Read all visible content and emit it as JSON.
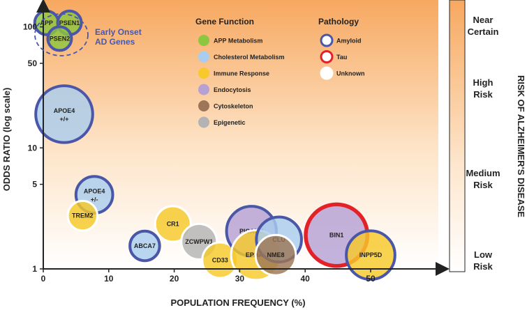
{
  "chart_data": {
    "type": "scatter",
    "xlabel": "POPULATION FREQUENCY (%)",
    "ylabel": "ODDS RATIO (log scale)",
    "y_scale": "log",
    "xlim": [
      0,
      58
    ],
    "ylim": [
      1,
      150
    ],
    "x_ticks": [
      0,
      10,
      20,
      30,
      40,
      50
    ],
    "y_ticks": [
      {
        "value": 1,
        "label": "1"
      },
      {
        "value": 5,
        "label": "5"
      },
      {
        "value": 10,
        "label": "10"
      },
      {
        "value": 50,
        "label": "50"
      },
      {
        "value": 100,
        "label": "100"
      }
    ],
    "colors": {
      "APP Metabolism": "#8dc63f",
      "Cholesterol Metabolism": "#a9cdee",
      "Immune Response": "#f7c92a",
      "Endocytosis": "#b6a1d4",
      "Cytoskeleton": "#9c7656",
      "Epigenetic": "#b3b3b3",
      "Amyloid": "#4a56a8",
      "Tau": "#e22228",
      "Unknown": "#ffffff"
    },
    "gene_function_title": "Gene Function",
    "gene_function_legend": [
      "APP Metabolism",
      "Cholesterol Metabolism",
      "Immune Response",
      "Endocytosis",
      "Cytoskeleton",
      "Epigenetic"
    ],
    "pathology_title": "Pathology",
    "pathology_legend": [
      "Amyloid",
      "Tau",
      "Unknown"
    ],
    "early_onset_label_line1": "Early Onset",
    "early_onset_label_line2": "AD Genes",
    "risk_title": "RISK OF ALZHEIMER'S DISEASE",
    "risk_levels": [
      {
        "line1": "Near",
        "line2": "Certain"
      },
      {
        "line1": "High",
        "line2": "Risk"
      },
      {
        "line1": "Medium",
        "line2": "Risk"
      },
      {
        "line1": "Low",
        "line2": "Risk"
      }
    ],
    "genes": [
      {
        "label": "APP",
        "label2": "",
        "x": 0.5,
        "y": 108,
        "size": 1.0,
        "function": "APP Metabolism",
        "pathology": "Amyloid"
      },
      {
        "label": "PSEN1",
        "label2": "",
        "x": 4.0,
        "y": 108,
        "size": 1.0,
        "function": "APP Metabolism",
        "pathology": "Amyloid"
      },
      {
        "label": "PSEN2",
        "label2": "",
        "x": 2.5,
        "y": 80,
        "size": 1.0,
        "function": "APP Metabolism",
        "pathology": "Amyloid"
      },
      {
        "label": "APOE4",
        "label2": "+/+",
        "x": 3.2,
        "y": 19,
        "size": 2.4,
        "function": "Cholesterol Metabolism",
        "pathology": "Amyloid"
      },
      {
        "label": "APOE4",
        "label2": "+/-",
        "x": 7.8,
        "y": 4.1,
        "size": 1.55,
        "function": "Cholesterol Metabolism",
        "pathology": "Amyloid"
      },
      {
        "label": "TREM2",
        "label2": "",
        "x": 6.0,
        "y": 2.75,
        "size": 1.25,
        "function": "Immune Response",
        "pathology": "Unknown"
      },
      {
        "label": "ABCA7",
        "label2": "",
        "x": 15.5,
        "y": 1.55,
        "size": 1.25,
        "function": "Cholesterol Metabolism",
        "pathology": "Amyloid"
      },
      {
        "label": "CR1",
        "label2": "",
        "x": 19.8,
        "y": 2.35,
        "size": 1.5,
        "function": "Immune Response",
        "pathology": "Unknown"
      },
      {
        "label": "ZCWPW1",
        "label2": "",
        "x": 23.8,
        "y": 1.68,
        "size": 1.5,
        "function": "Epigenetic",
        "pathology": "Unknown"
      },
      {
        "label": "CD33",
        "label2": "",
        "x": 27.0,
        "y": 1.18,
        "size": 1.5,
        "function": "Immune Response",
        "pathology": "Unknown"
      },
      {
        "label": "PICALM",
        "label2": "",
        "x": 31.8,
        "y": 2.05,
        "size": 2.1,
        "function": "Endocytosis",
        "pathology": "Amyloid"
      },
      {
        "label": "EPHA1",
        "label2": "",
        "x": 32.5,
        "y": 1.3,
        "size": 2.1,
        "function": "Immune Response",
        "pathology": "Unknown"
      },
      {
        "label": "CLU",
        "label2": "",
        "x": 36.0,
        "y": 1.75,
        "size": 1.9,
        "function": "Cholesterol Metabolism",
        "pathology": "Amyloid"
      },
      {
        "label": "NME8",
        "label2": "",
        "x": 35.5,
        "y": 1.3,
        "size": 1.7,
        "function": "Cytoskeleton",
        "pathology": "Unknown"
      },
      {
        "label": "BIN1",
        "label2": "",
        "x": 44.8,
        "y": 1.9,
        "size": 2.6,
        "function": "Endocytosis",
        "pathology": "Tau"
      },
      {
        "label": "INPP5D",
        "label2": "",
        "x": 50.0,
        "y": 1.3,
        "size": 2.05,
        "function": "Immune Response",
        "pathology": "Amyloid"
      }
    ]
  }
}
